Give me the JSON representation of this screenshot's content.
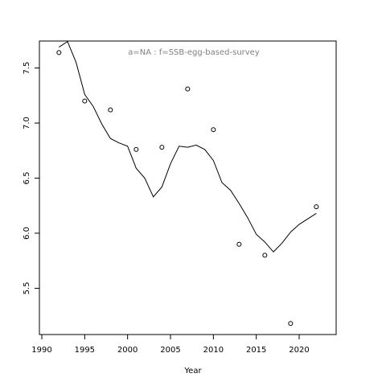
{
  "chart_data": {
    "type": "line",
    "annotation": "a=NA  :  f=SSB-egg-based-survey",
    "x_label": "Year",
    "line": {
      "color": "#000000",
      "x": [
        1992,
        1993,
        1994,
        1995,
        1996,
        1997,
        1998,
        1999,
        2000,
        2001,
        2002,
        2003,
        2004,
        2005,
        2006,
        2007,
        2008,
        2009,
        2010,
        2011,
        2012,
        2013,
        2014,
        2015,
        2016,
        2017,
        2018,
        2019,
        2020,
        2021,
        2022
      ],
      "values": [
        7.69,
        7.74,
        7.55,
        7.26,
        7.15,
        6.99,
        6.86,
        6.82,
        6.79,
        6.59,
        6.5,
        6.33,
        6.42,
        6.63,
        6.79,
        6.78,
        6.8,
        6.76,
        6.66,
        6.46,
        6.39,
        6.27,
        6.14,
        5.99,
        5.92,
        5.83,
        5.91,
        6.01,
        6.08,
        6.13,
        6.18
      ]
    },
    "points": {
      "color": "#000000",
      "x": [
        1992,
        1995,
        1998,
        2001,
        2004,
        2007,
        2010,
        2013,
        2016,
        2019,
        2022
      ],
      "values": [
        7.64,
        7.2,
        7.12,
        6.76,
        6.78,
        7.31,
        6.94,
        5.9,
        5.8,
        5.18,
        6.24
      ]
    },
    "xlim": [
      1989.72,
      2024.31
    ],
    "ylim": [
      5.08,
      7.745
    ],
    "xticks": [
      1990,
      1995,
      2000,
      2005,
      2010,
      2015,
      2020
    ],
    "yticks": [
      5.5,
      {
        "value": 6.0,
        "label": "6.0"
      },
      6.5,
      {
        "value": 7.0,
        "label": "7.0"
      },
      7.5
    ]
  }
}
